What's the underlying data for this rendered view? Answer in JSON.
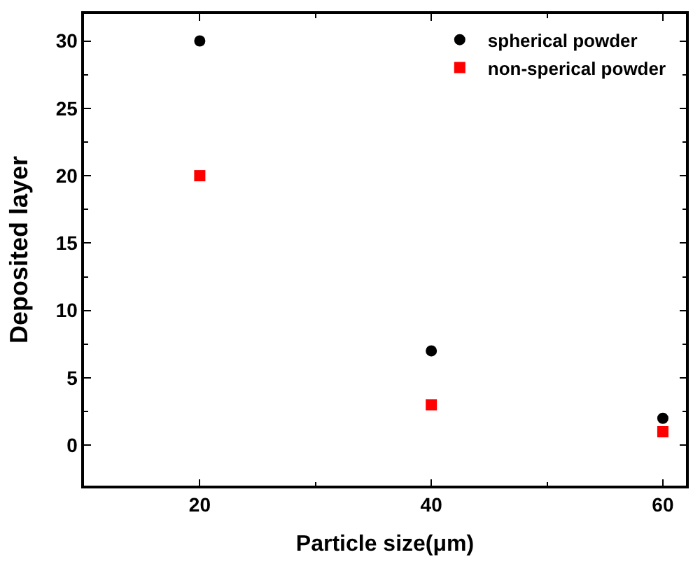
{
  "chart_data": {
    "type": "scatter",
    "xlabel": "Particle size(μm)",
    "ylabel": "Deposited layer",
    "x": [
      20,
      40,
      60
    ],
    "series": [
      {
        "name": "spherical powder",
        "color": "#000000",
        "marker": "circle",
        "values": [
          30,
          7,
          2
        ]
      },
      {
        "name": "non-sperical powder",
        "color": "#ff0000",
        "marker": "square",
        "values": [
          20,
          3,
          1
        ]
      }
    ],
    "xlim": [
      10,
      62
    ],
    "xticks": [
      20,
      40,
      60
    ],
    "ylim": [
      -3,
      32
    ],
    "yticks": [
      0,
      5,
      10,
      15,
      20,
      25,
      30
    ],
    "legend": "top right"
  }
}
